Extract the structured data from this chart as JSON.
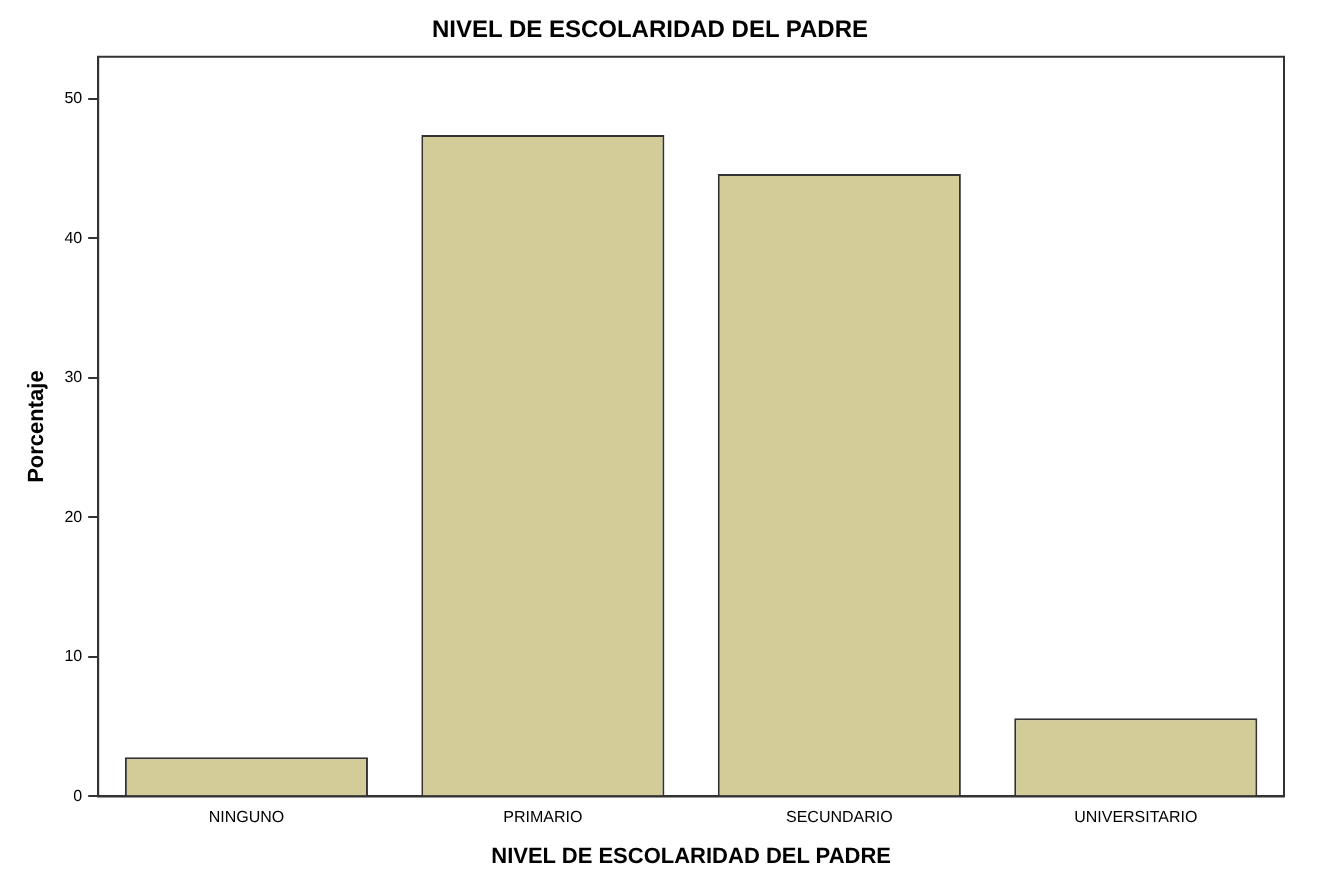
{
  "chart_data": {
    "type": "bar",
    "title": "NIVEL DE ESCOLARIDAD DEL PADRE",
    "xlabel": "NIVEL DE ESCOLARIDAD DEL PADRE",
    "ylabel": "Porcentaje",
    "categories": [
      "NINGUNO",
      "PRIMARIO",
      "SECUNDARIO",
      "UNIVERSITARIO"
    ],
    "values": [
      2.8,
      47.4,
      44.6,
      5.6
    ],
    "color": "#d3cc98",
    "ylim": [
      0,
      53
    ],
    "yticks": [
      0,
      10,
      20,
      30,
      40,
      50
    ],
    "grid": false,
    "legend": false
  }
}
